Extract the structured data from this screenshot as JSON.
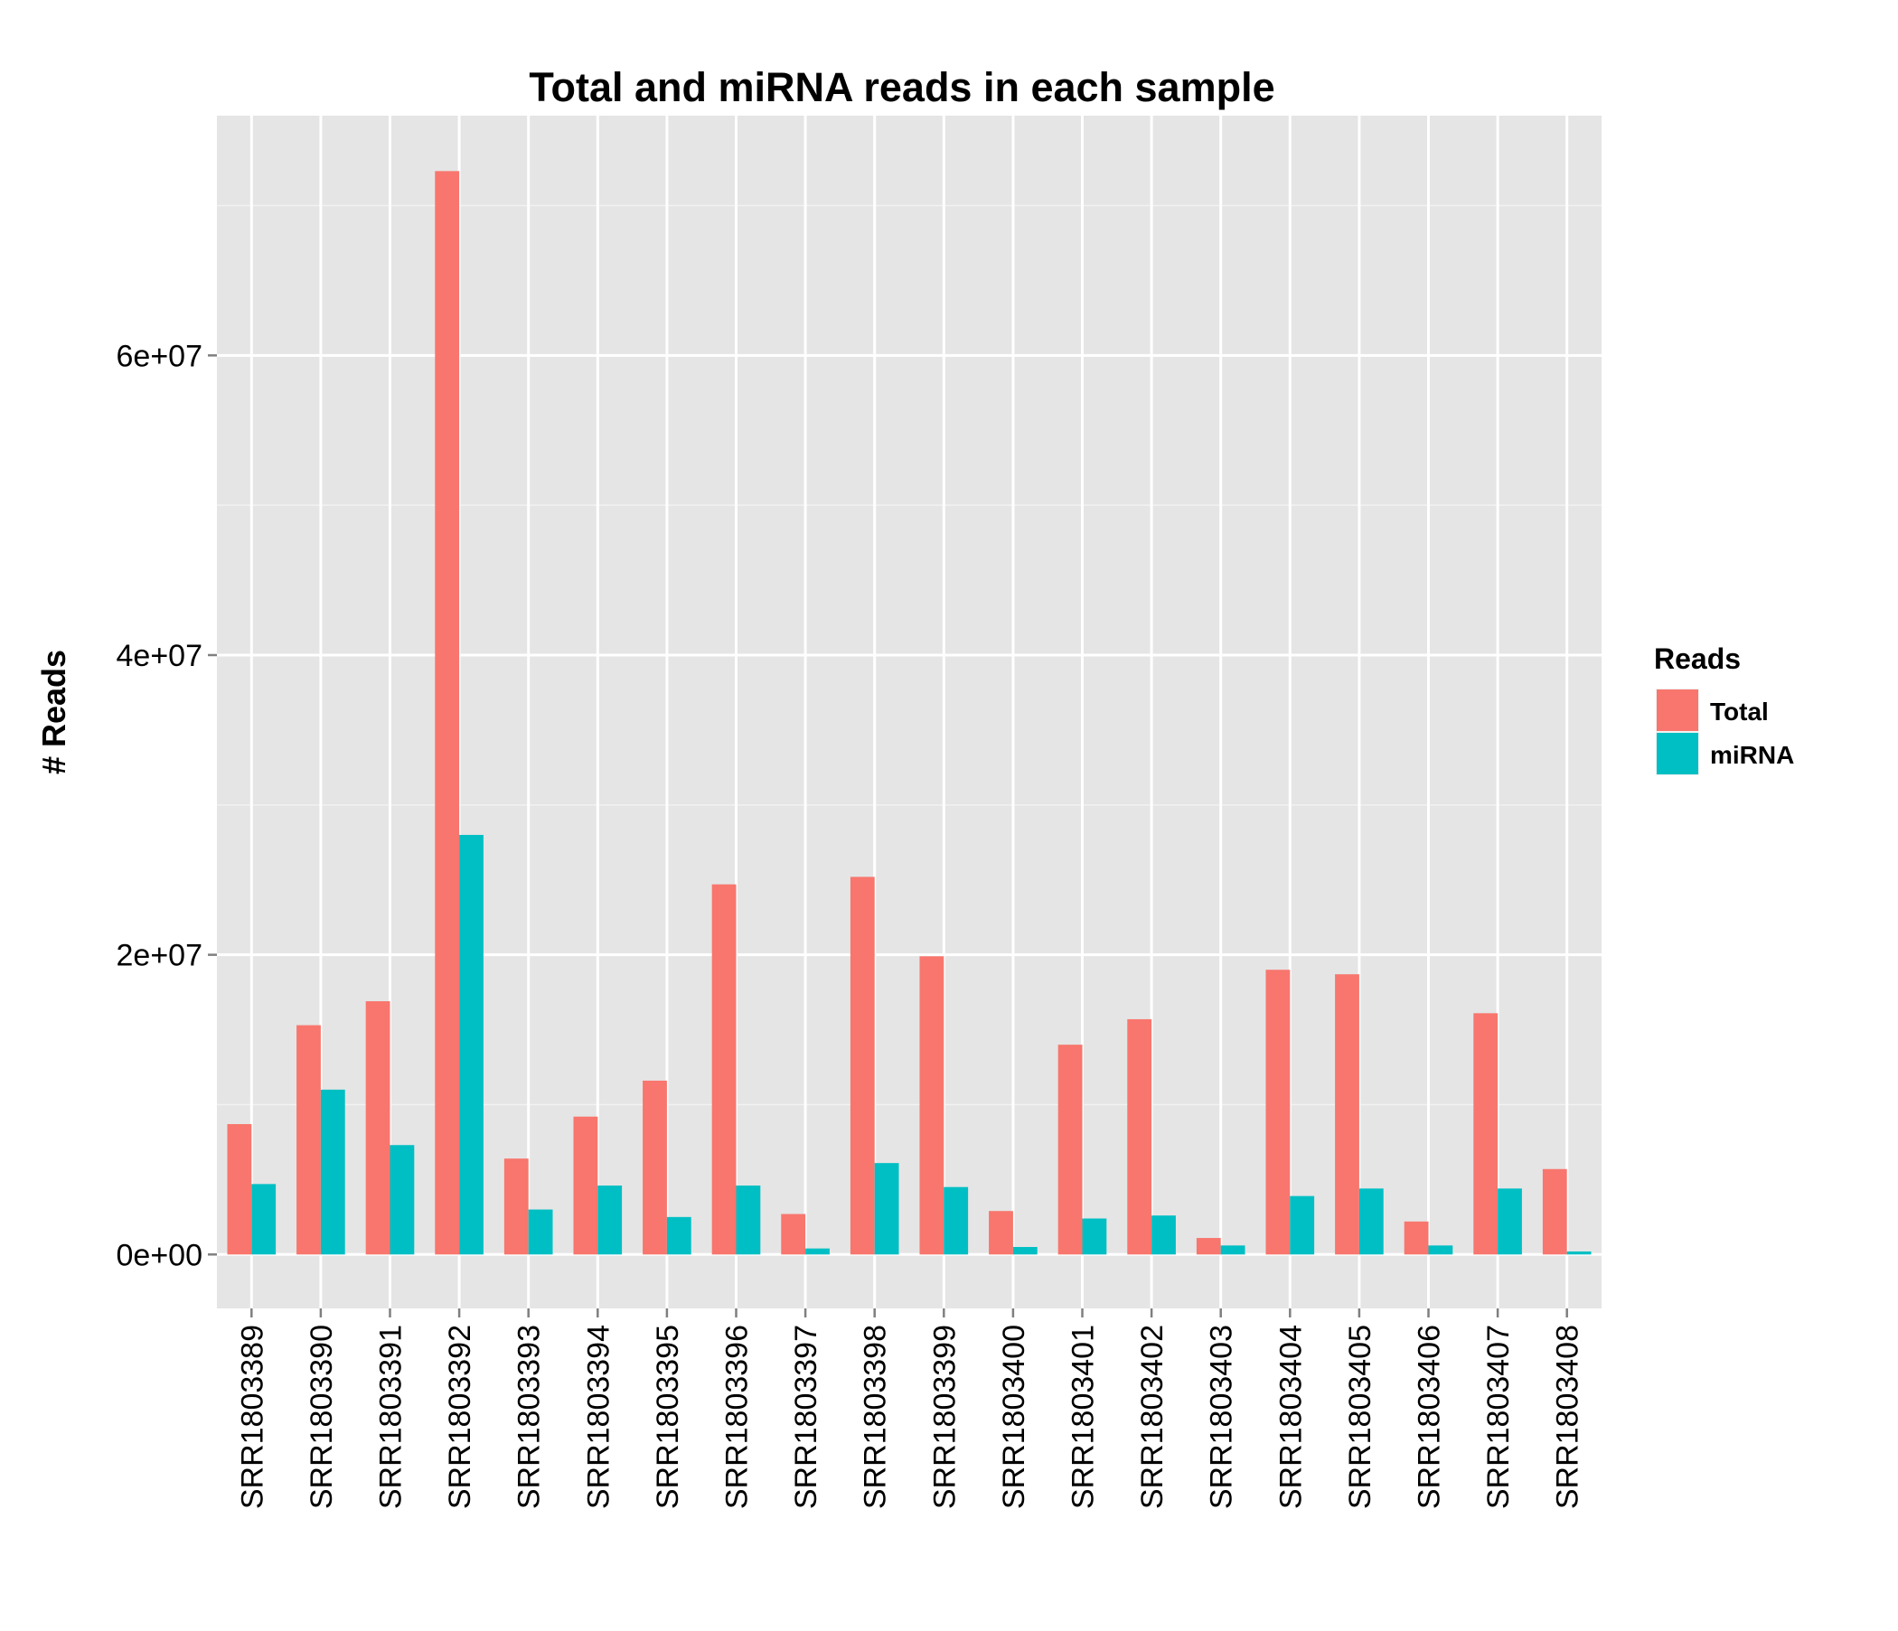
{
  "chart_data": {
    "type": "bar",
    "title": "Total and miRNA reads in each sample",
    "xlabel": "",
    "ylabel": "# Reads",
    "ylim": [
      -3600000,
      76000000
    ],
    "yticks": [
      0,
      20000000,
      40000000,
      60000000
    ],
    "ytick_labels": [
      "0e+00",
      "2e+07",
      "4e+07",
      "6e+07"
    ],
    "grid": true,
    "legend": {
      "title": "Reads",
      "position": "right"
    },
    "categories": [
      "SRR1803389",
      "SRR1803390",
      "SRR1803391",
      "SRR1803392",
      "SRR1803393",
      "SRR1803394",
      "SRR1803395",
      "SRR1803396",
      "SRR1803397",
      "SRR1803398",
      "SRR1803399",
      "SRR1803400",
      "SRR1803401",
      "SRR1803402",
      "SRR1803403",
      "SRR1803404",
      "SRR1803405",
      "SRR1803406",
      "SRR1803407",
      "SRR1803408"
    ],
    "series": [
      {
        "name": "Total",
        "color": "#F8766D",
        "values": [
          8700000,
          15300000,
          16900000,
          72300000,
          6400000,
          9200000,
          11600000,
          24700000,
          2700000,
          25200000,
          19900000,
          2900000,
          14000000,
          15700000,
          1100000,
          19000000,
          18700000,
          2200000,
          16100000,
          5700000
        ]
      },
      {
        "name": "miRNA",
        "color": "#00BFC4",
        "values": [
          4700000,
          11000000,
          7300000,
          28000000,
          3000000,
          4600000,
          2500000,
          4600000,
          400000,
          6100000,
          4500000,
          500000,
          2400000,
          2600000,
          600000,
          3900000,
          4400000,
          600000,
          4400000,
          200000
        ]
      }
    ]
  }
}
